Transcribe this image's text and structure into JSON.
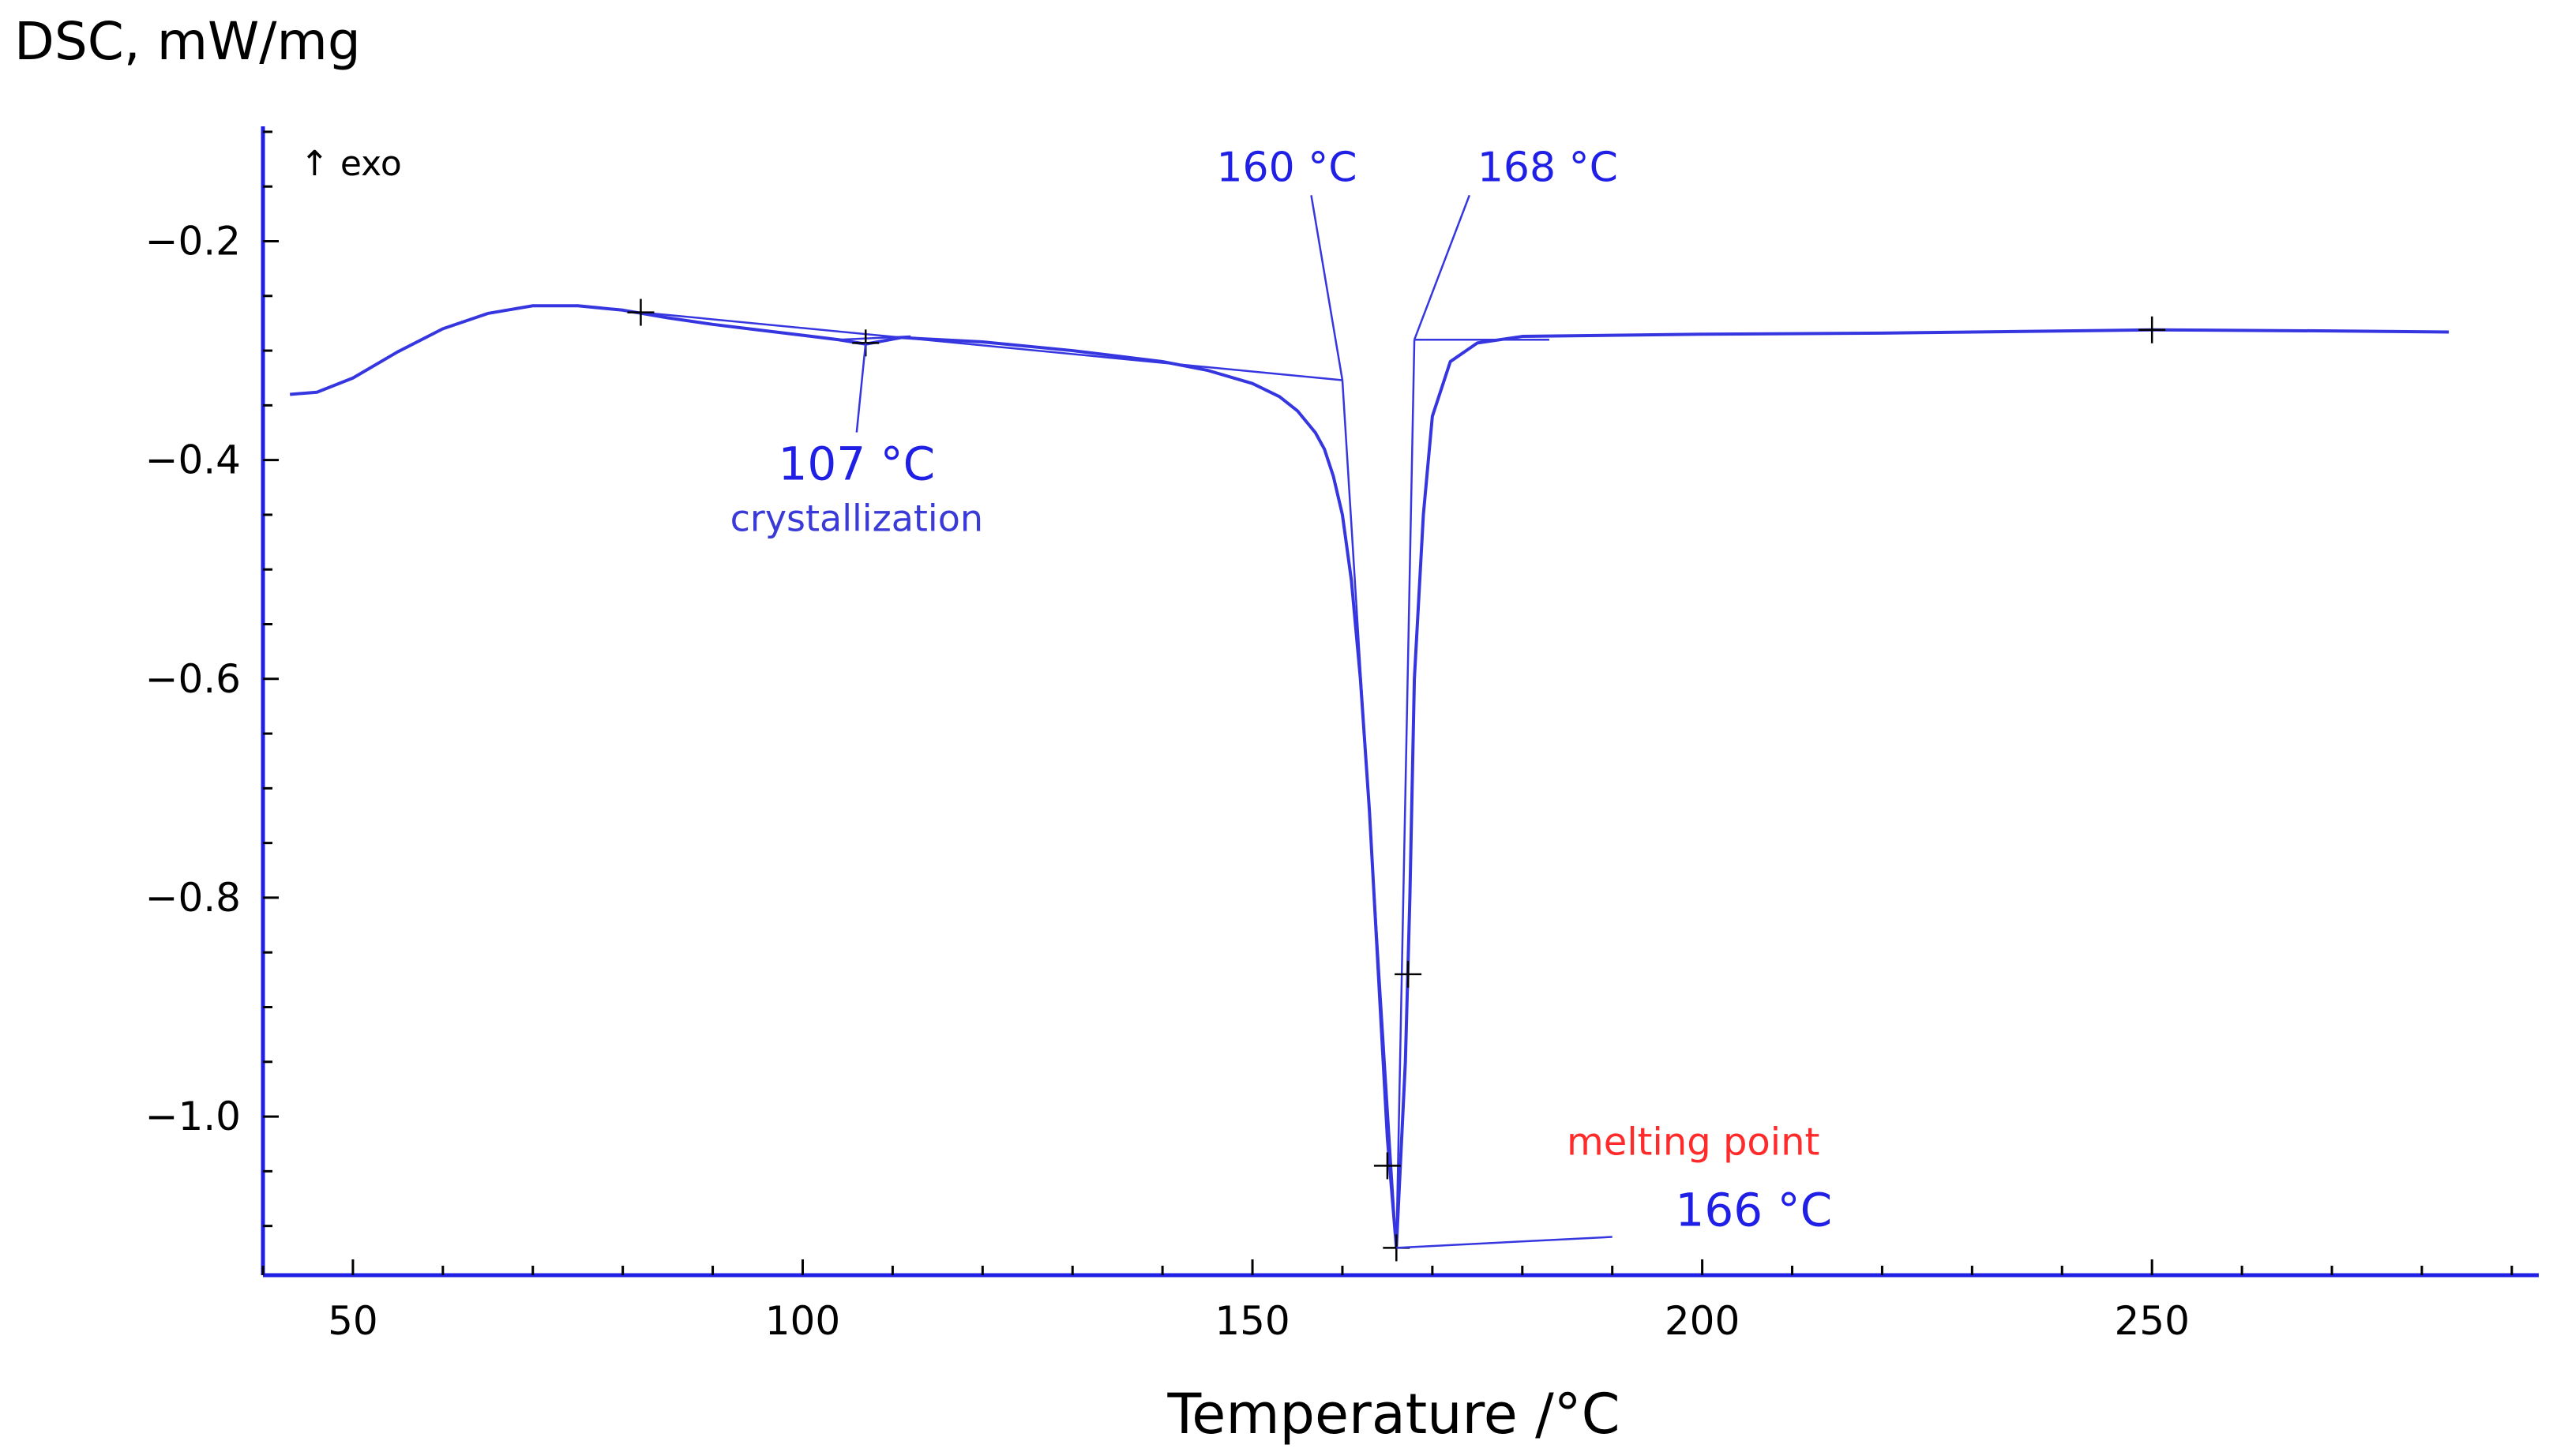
{
  "chart_data": {
    "type": "line",
    "ylabel": "DSC, mW/mg",
    "xlabel": "Temperature /°C",
    "xlim": [
      40,
      293
    ],
    "ylim": [
      -1.145,
      -0.095
    ],
    "x_ticks": [
      50,
      100,
      150,
      200,
      250
    ],
    "x_tick_labels": [
      "50",
      "100",
      "150",
      "200",
      "250"
    ],
    "y_ticks": [
      -0.2,
      -0.4,
      -0.6,
      -0.8,
      -1.0
    ],
    "y_tick_labels": [
      "−0.2",
      "−0.4",
      "−0.6",
      "−0.8",
      "−1.0"
    ],
    "grid": false,
    "colors": {
      "curve": "#3636e0",
      "axis": "#1f1fe6",
      "annotation": "#1f1fe6",
      "highlight": "#ff2a2a"
    },
    "exo_label": "↑ exo",
    "series": [
      {
        "x": [
          43,
          46,
          50,
          55,
          60,
          65,
          70,
          75,
          80,
          85,
          90,
          95,
          100,
          104,
          107,
          109,
          111,
          113,
          120,
          130,
          140,
          145,
          150,
          153,
          155,
          157,
          158,
          159,
          160,
          161,
          162,
          163,
          164,
          165,
          166,
          167,
          167.5,
          168,
          169,
          170,
          172,
          175,
          180,
          190,
          200,
          220,
          250,
          270,
          283
        ],
        "y": [
          -0.34,
          -0.338,
          -0.325,
          -0.301,
          -0.28,
          -0.266,
          -0.259,
          -0.259,
          -0.263,
          -0.27,
          -0.276,
          -0.281,
          -0.286,
          -0.29,
          -0.294,
          -0.291,
          -0.288,
          -0.289,
          -0.292,
          -0.3,
          -0.31,
          -0.318,
          -0.33,
          -0.342,
          -0.355,
          -0.375,
          -0.39,
          -0.415,
          -0.45,
          -0.51,
          -0.6,
          -0.72,
          -0.87,
          -1.02,
          -1.12,
          -0.95,
          -0.8,
          -0.6,
          -0.45,
          -0.36,
          -0.31,
          -0.293,
          -0.287,
          -0.286,
          -0.285,
          -0.284,
          -0.281,
          -0.282,
          -0.283
        ]
      }
    ],
    "construction_lines": [
      {
        "x": [
          82,
          160
        ],
        "y": [
          -0.265,
          -0.327
        ]
      },
      {
        "x": [
          104,
          112
        ],
        "y": [
          -0.29,
          -0.287
        ]
      },
      {
        "x": [
          160,
          166
        ],
        "y": [
          -0.327,
          -1.12
        ]
      },
      {
        "x": [
          166,
          168
        ],
        "y": [
          -1.12,
          -0.29
        ]
      },
      {
        "x": [
          168,
          183
        ],
        "y": [
          -0.29,
          -0.29
        ]
      }
    ],
    "markers": [
      {
        "x": 82,
        "y": -0.265
      },
      {
        "x": 107,
        "y": -0.293
      },
      {
        "x": 165,
        "y": -1.045
      },
      {
        "x": 166,
        "y": -1.12
      },
      {
        "x": 167.3,
        "y": -0.87
      },
      {
        "x": 250,
        "y": -0.281
      }
    ],
    "annotations": [
      {
        "text": "160 °C",
        "at": [
          160,
          -0.327
        ],
        "label_pos": [
          146,
          -0.145
        ],
        "style": "blue"
      },
      {
        "text": "168 °C",
        "at": [
          168,
          -0.29
        ],
        "label_pos": [
          175,
          -0.145
        ],
        "style": "blue"
      },
      {
        "text": "107 °C",
        "at": [
          107,
          -0.293
        ],
        "label_pos": [
          106,
          -0.418
        ],
        "style": "blue-lg"
      },
      {
        "text": "crystallization",
        "label_pos": [
          106,
          -0.465
        ],
        "style": "sub"
      },
      {
        "text": "melting point",
        "label_pos": [
          199,
          -1.035
        ],
        "style": "red"
      },
      {
        "text": "166 °C",
        "at": [
          166,
          -1.12
        ],
        "label_pos": [
          197,
          -1.1
        ],
        "style": "blue-lg",
        "leader_to": [
          190,
          -1.11
        ]
      }
    ]
  }
}
